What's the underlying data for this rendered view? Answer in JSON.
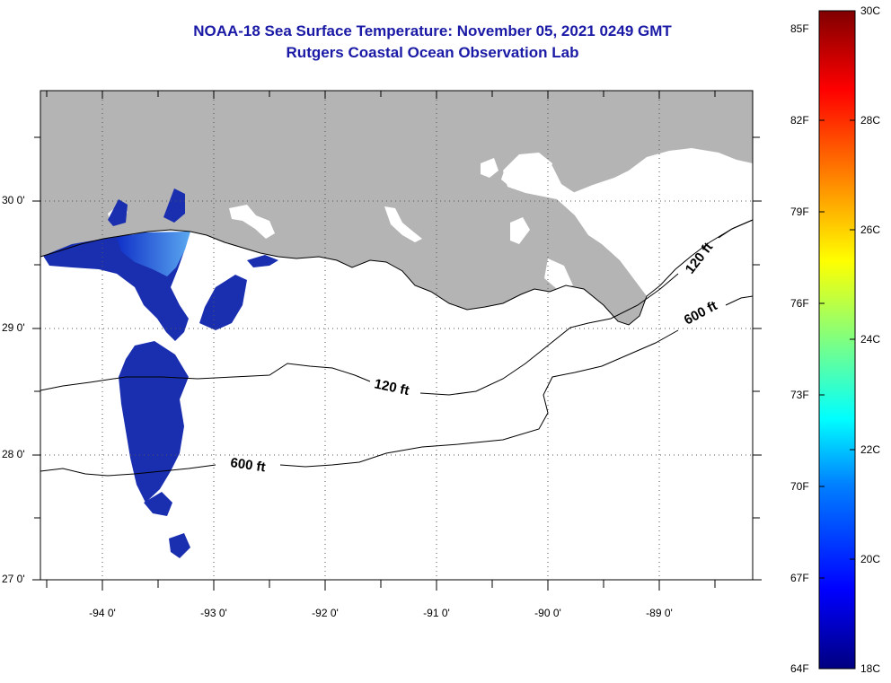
{
  "title": "NOAA-18 Sea Surface Temperature:  November 05, 2021 0249 GMT",
  "subtitle": "Rutgers Coastal Ocean Observation Lab",
  "map": {
    "lon_range": [
      -94.55,
      -88.25
    ],
    "lat_range": [
      26.95,
      30.85
    ],
    "lat_ticks": [
      {
        "value": 30,
        "label": "30 0'"
      },
      {
        "value": 29,
        "label": "29 0'"
      },
      {
        "value": 28,
        "label": "28 0'"
      },
      {
        "value": 27,
        "label": "27 0'"
      }
    ],
    "lon_ticks": [
      {
        "value": -94,
        "label": "-94 0'"
      },
      {
        "value": -93,
        "label": "-93 0'"
      },
      {
        "value": -92,
        "label": "-92 0'"
      },
      {
        "value": -91,
        "label": "-91 0'"
      },
      {
        "value": -90,
        "label": "-90 0'"
      },
      {
        "value": -89,
        "label": "-89 0'"
      }
    ],
    "grid": "dotted",
    "land_color": "#b4b4b4",
    "contours": [
      {
        "label": "120 ft"
      },
      {
        "label": "600 ft"
      }
    ]
  },
  "colorbar": {
    "range_c": [
      18,
      30
    ],
    "range_f": [
      64,
      85
    ],
    "celsius_labels": [
      "30C",
      "28C",
      "26C",
      "24C",
      "22C",
      "20C",
      "18C"
    ],
    "fahrenheit_labels": [
      "85F",
      "82F",
      "79F",
      "76F",
      "73F",
      "70F",
      "67F",
      "64F"
    ],
    "colors": [
      "#800000",
      "#ff0000",
      "#ff8000",
      "#ffff00",
      "#80ff80",
      "#00ffff",
      "#0080ff",
      "#0000ff",
      "#000080"
    ]
  }
}
